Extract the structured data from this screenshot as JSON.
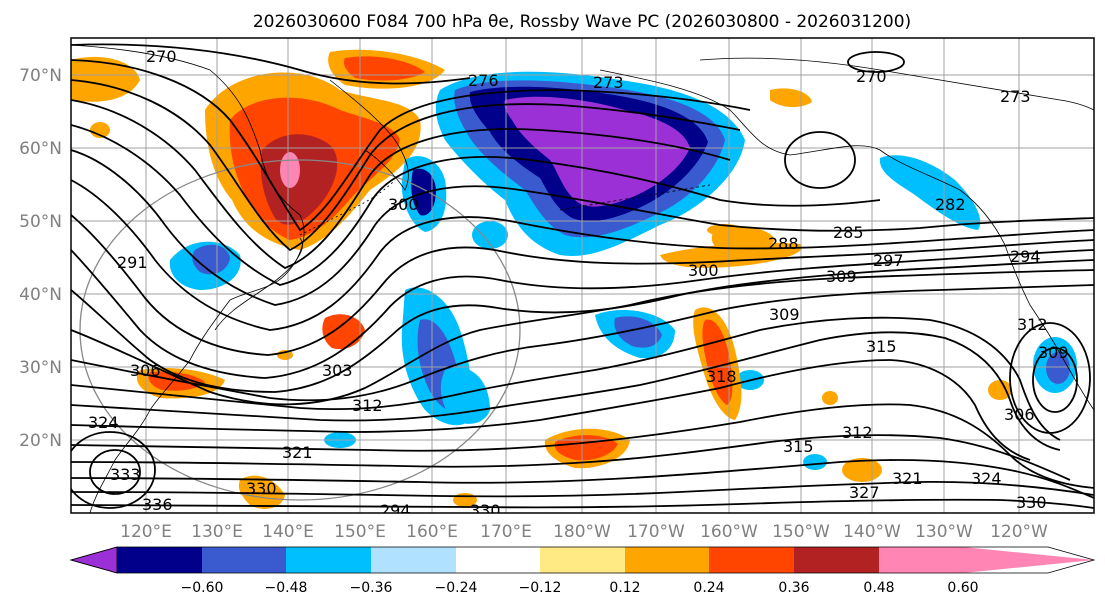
{
  "title": "2026030600 F084 700 hPa θe, Rossby Wave PC (2026030800 - 2026031200)",
  "lat_labels": [
    "70°N",
    "60°N",
    "50°N",
    "40°N",
    "30°N",
    "20°N"
  ],
  "lon_labels": [
    "120°E",
    "130°E",
    "140°E",
    "150°E",
    "160°E",
    "170°E",
    "180°W",
    "170°W",
    "160°W",
    "150°W",
    "140°W",
    "130°W",
    "120°W"
  ],
  "contour_labels": [
    "270",
    "276",
    "273",
    "270",
    "273",
    "291",
    "300",
    "288",
    "285",
    "300",
    "309",
    "297",
    "294",
    "309",
    "315",
    "303",
    "312",
    "318",
    "312",
    "315",
    "306",
    "309",
    "312",
    "324",
    "333",
    "321",
    "330",
    "327",
    "321",
    "324",
    "330",
    "330",
    "336",
    "294",
    "282",
    "306"
  ],
  "colorbar": {
    "ticks": [
      "−0.60",
      "−0.48",
      "−0.36",
      "−0.24",
      "−0.12",
      "0.12",
      "0.24",
      "0.36",
      "0.48",
      "0.60"
    ],
    "colors": [
      "#9b30d6",
      "#00008b",
      "#3a5bd0",
      "#00bfff",
      "#b0e2ff",
      "#ffffff",
      "#ffea84",
      "#ffa500",
      "#ff4500",
      "#b22222",
      "#ff85b5"
    ]
  },
  "colors": {
    "frame": "#000000",
    "grid": "#a0a0a0",
    "axis_text": "#808080",
    "contour": "#000000"
  }
}
